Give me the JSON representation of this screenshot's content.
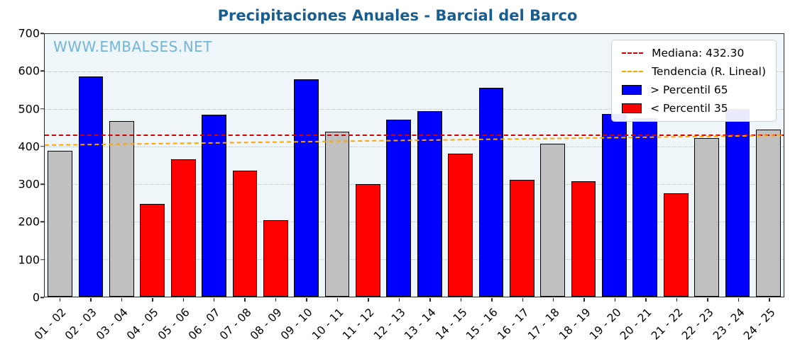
{
  "title": "Precipitaciones Anuales - Barcial del Barco",
  "watermark": "WWW.EMBALSES.NET",
  "legend": {
    "median_label": "Mediana: 432.30",
    "trend_label": "Tendencia (R. Lineal)",
    "p65_label": "> Percentil 65",
    "p35_label": "< Percentil 35"
  },
  "colors": {
    "blue": "#0000ff",
    "red": "#ff0000",
    "gray": "#c0c0c0",
    "median_line": "#d40000",
    "trend_line": "#ffa500",
    "title": "#1a5d8f",
    "watermark": "#74b4d8",
    "plot_bg": "#eef6fa"
  },
  "chart_data": {
    "type": "bar",
    "title": "Precipitaciones Anuales - Barcial del Barco",
    "xlabel": "",
    "ylabel": "",
    "ylim": [
      0,
      700
    ],
    "ytick_step": 100,
    "grid": true,
    "legend_position": "upper right",
    "categories": [
      "01 - 02",
      "02 - 03",
      "03 - 04",
      "04 - 05",
      "05 - 06",
      "06 - 07",
      "07 - 08",
      "08 - 09",
      "09 - 10",
      "10 - 11",
      "11 - 12",
      "12 - 13",
      "13 - 14",
      "14 - 15",
      "15 - 16",
      "16 - 17",
      "17 - 18",
      "18 - 19",
      "19 - 20",
      "20 - 21",
      "21 - 22",
      "22 - 23",
      "23 - 24",
      "24 - 25"
    ],
    "values": [
      389,
      587,
      468,
      247,
      366,
      485,
      336,
      203,
      580,
      440,
      300,
      472,
      494,
      381,
      557,
      311,
      408,
      307,
      487,
      475,
      276,
      423,
      500,
      445
    ],
    "bar_classes": [
      "gray",
      "blue",
      "gray",
      "red",
      "red",
      "blue",
      "red",
      "red",
      "blue",
      "gray",
      "red",
      "blue",
      "blue",
      "red",
      "blue",
      "red",
      "gray",
      "red",
      "blue",
      "blue",
      "red",
      "gray",
      "blue",
      "gray"
    ],
    "median": 432.3,
    "trend": {
      "start": 404,
      "end": 430
    }
  }
}
